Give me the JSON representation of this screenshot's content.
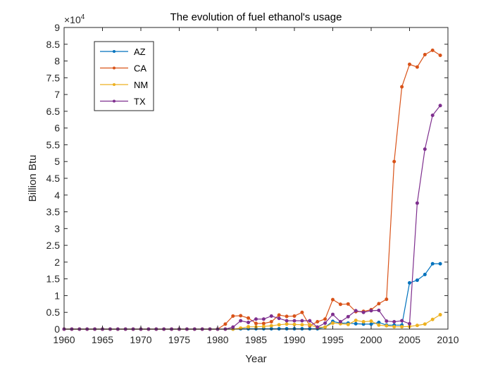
{
  "chart_data": {
    "type": "line",
    "title": "The evolution of fuel ethanol's usage",
    "xlabel": "Year",
    "ylabel": "Billion Btu",
    "y_exponent_label": "×10",
    "y_exponent_power": "4",
    "xlim": [
      1960,
      2010
    ],
    "ylim": [
      0,
      90000
    ],
    "xticks": [
      1960,
      1965,
      1970,
      1975,
      1980,
      1985,
      1990,
      1995,
      2000,
      2005,
      2010
    ],
    "xtick_labels": [
      "1960",
      "1965",
      "1970",
      "1975",
      "1980",
      "1985",
      "1990",
      "1995",
      "2000",
      "2005",
      "2010"
    ],
    "yticks": [
      0,
      5000,
      10000,
      15000,
      20000,
      25000,
      30000,
      35000,
      40000,
      45000,
      50000,
      55000,
      60000,
      65000,
      70000,
      75000,
      80000,
      85000,
      90000
    ],
    "ytick_labels": [
      "0",
      "0.5",
      "1",
      "1.5",
      "2",
      "2.5",
      "3",
      "3.5",
      "4",
      "4.5",
      "5",
      "5.5",
      "6",
      "6.5",
      "7",
      "7.5",
      "8",
      "8.5",
      "9"
    ],
    "grid": false,
    "legend_position": "top-left",
    "x": [
      1960,
      1961,
      1962,
      1963,
      1964,
      1965,
      1966,
      1967,
      1968,
      1969,
      1970,
      1971,
      1972,
      1973,
      1974,
      1975,
      1976,
      1977,
      1978,
      1979,
      1980,
      1981,
      1982,
      1983,
      1984,
      1985,
      1986,
      1987,
      1988,
      1989,
      1990,
      1991,
      1992,
      1993,
      1994,
      1995,
      1996,
      1997,
      1998,
      1999,
      2000,
      2001,
      2002,
      2003,
      2004,
      2005,
      2006,
      2007,
      2008,
      2009
    ],
    "series": [
      {
        "name": "AZ",
        "color": "#0072BD",
        "values": [
          0,
          0,
          0,
          0,
          0,
          0,
          0,
          0,
          0,
          0,
          0,
          0,
          0,
          0,
          0,
          0,
          0,
          0,
          0,
          0,
          0,
          0,
          0,
          100,
          100,
          100,
          100,
          100,
          100,
          100,
          100,
          100,
          100,
          100,
          600,
          2300,
          1800,
          1800,
          1600,
          1500,
          1500,
          2000,
          1200,
          1200,
          1200,
          13800,
          14600,
          16300,
          19500,
          19500
        ]
      },
      {
        "name": "CA",
        "color": "#D95319",
        "values": [
          0,
          0,
          0,
          0,
          0,
          0,
          0,
          0,
          0,
          0,
          0,
          0,
          0,
          0,
          0,
          0,
          0,
          0,
          0,
          0,
          0,
          1500,
          3900,
          4000,
          3300,
          1700,
          1700,
          2200,
          4200,
          3800,
          3900,
          5000,
          1000,
          2200,
          3000,
          8800,
          7400,
          7500,
          5200,
          5300,
          5800,
          7600,
          8900,
          50000,
          72300,
          79000,
          78200,
          81900,
          83200,
          81700
        ]
      },
      {
        "name": "NM",
        "color": "#EDB120",
        "values": [
          0,
          0,
          0,
          0,
          0,
          0,
          0,
          0,
          0,
          0,
          0,
          0,
          0,
          0,
          0,
          0,
          0,
          0,
          0,
          0,
          0,
          0,
          0,
          300,
          700,
          700,
          800,
          1000,
          1300,
          1500,
          1400,
          1300,
          1300,
          500,
          600,
          1800,
          1600,
          1400,
          2600,
          2200,
          2400,
          1200,
          1000,
          700,
          700,
          800,
          1100,
          1500,
          2900,
          4300
        ]
      },
      {
        "name": "TX",
        "color": "#7E2F8E",
        "values": [
          0,
          0,
          0,
          0,
          0,
          0,
          0,
          0,
          0,
          0,
          0,
          0,
          0,
          0,
          0,
          0,
          0,
          0,
          0,
          0,
          0,
          0,
          600,
          2500,
          2000,
          3000,
          3000,
          3900,
          3200,
          2500,
          2500,
          2500,
          2500,
          600,
          1800,
          4400,
          2200,
          3700,
          5500,
          5000,
          5500,
          5600,
          2400,
          2200,
          2500,
          1600,
          37600,
          53700,
          63800,
          66700
        ]
      }
    ]
  }
}
